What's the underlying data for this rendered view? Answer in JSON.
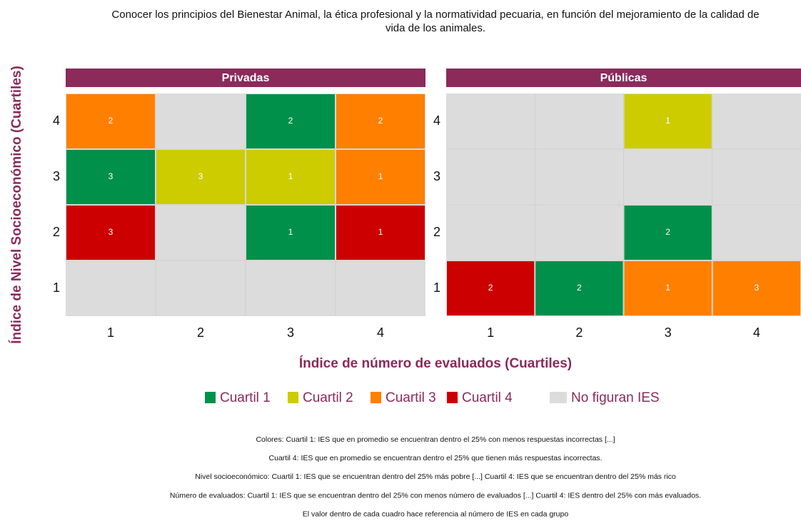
{
  "chart_data": {
    "type": "heatmap",
    "title": "Conocer los principios del Bienestar Animal, la ética profesional y la normatividad pecuaria, en función del mejoramiento de la calidad de vida de los animales.",
    "x_label": "Índice de número de evaluados (Cuartiles)",
    "y_label": "Índice de Nivel Socioeconómico (Cuartiles)",
    "xticks": [
      1,
      2,
      3,
      4
    ],
    "yticks": [
      1,
      2,
      3,
      4
    ],
    "legend": [
      {
        "name": "Cuartil 1",
        "color": "#00904a"
      },
      {
        "name": "Cuartil 2",
        "color": "#cccc00"
      },
      {
        "name": "Cuartil 3",
        "color": "#ff7f00"
      },
      {
        "name": "Cuartil 4",
        "color": "#cc0000"
      },
      {
        "name": "No figuran IES",
        "color": "#dcdcdc"
      }
    ],
    "panels": [
      {
        "name": "Privadas",
        "cells": [
          {
            "x": 1,
            "y": 4,
            "value": 2,
            "color": "#ff7f00"
          },
          {
            "x": 3,
            "y": 4,
            "value": 2,
            "color": "#00904a"
          },
          {
            "x": 4,
            "y": 4,
            "value": 2,
            "color": "#ff7f00"
          },
          {
            "x": 1,
            "y": 3,
            "value": 3,
            "color": "#00904a"
          },
          {
            "x": 2,
            "y": 3,
            "value": 3,
            "color": "#cccc00"
          },
          {
            "x": 3,
            "y": 3,
            "value": 1,
            "color": "#cccc00"
          },
          {
            "x": 4,
            "y": 3,
            "value": 1,
            "color": "#ff7f00"
          },
          {
            "x": 1,
            "y": 2,
            "value": 3,
            "color": "#cc0000"
          },
          {
            "x": 3,
            "y": 2,
            "value": 1,
            "color": "#00904a"
          },
          {
            "x": 4,
            "y": 2,
            "value": 1,
            "color": "#cc0000"
          }
        ]
      },
      {
        "name": "Públicas",
        "cells": [
          {
            "x": 3,
            "y": 4,
            "value": 1,
            "color": "#cccc00"
          },
          {
            "x": 3,
            "y": 2,
            "value": 2,
            "color": "#00904a"
          },
          {
            "x": 1,
            "y": 1,
            "value": 2,
            "color": "#cc0000"
          },
          {
            "x": 2,
            "y": 1,
            "value": 2,
            "color": "#00904a"
          },
          {
            "x": 3,
            "y": 1,
            "value": 1,
            "color": "#ff7f00"
          },
          {
            "x": 4,
            "y": 1,
            "value": 3,
            "color": "#ff7f00"
          }
        ]
      }
    ],
    "notes": [
      "Colores: Cuartil 1:  IES que en promedio se encuentran dentro el 25% con menos respuestas incorrectas [...]",
      "Cuartil 4: IES que en promedio se encuentran dentro el 25% que tienen más respuestas incorrectas.",
      "Nivel socioeconómico: Cuartil 1: IES que se encuentran dentro del 25% más pobre [...] Cuartil 4: IES que se encuentran dentro del 25% más rico",
      "Número de evaluados: Cuartil 1: IES que se encuentran dentro del 25% con menos número de evaluados [...] Cuartil 4: IES dentro del 25% con más evaluados.",
      "El valor dentro de cada cuadro hace referencia al número de IES en cada grupo"
    ]
  }
}
